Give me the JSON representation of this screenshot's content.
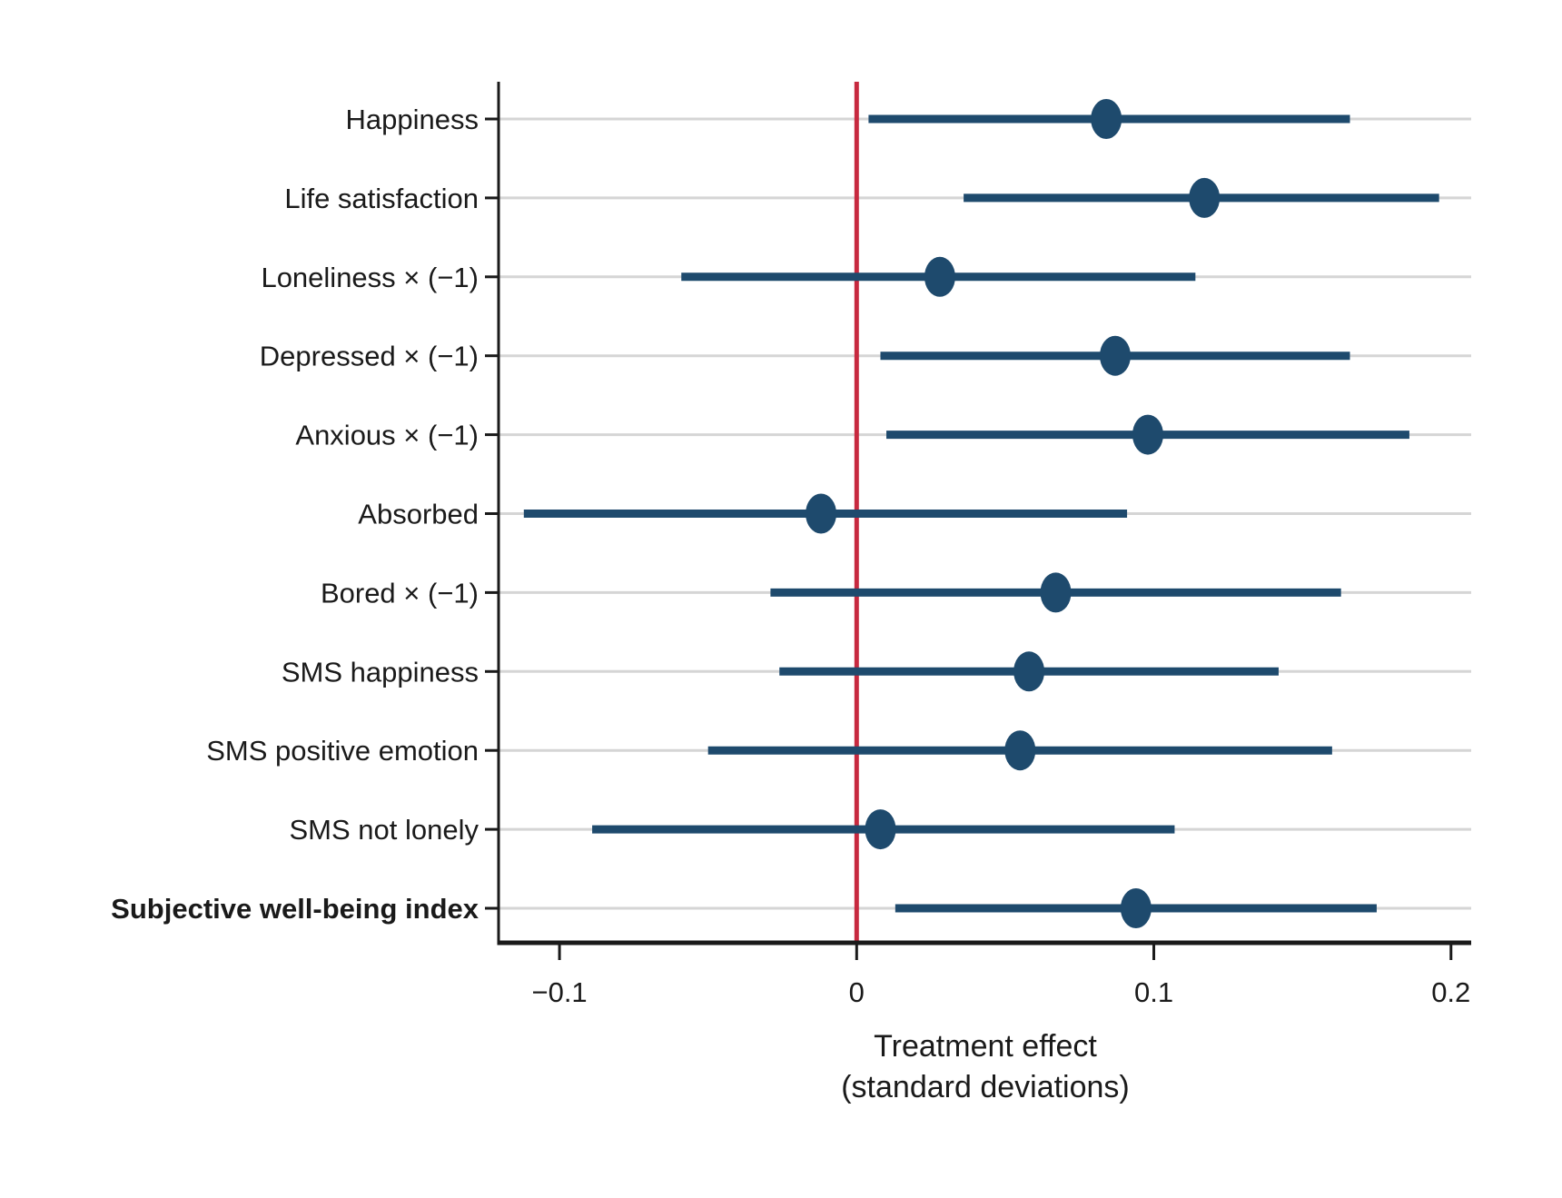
{
  "chart_data": {
    "type": "scatter",
    "subtype": "forest-plot-dot-with-ci",
    "title": "",
    "xlabel_line1": "Treatment effect",
    "xlabel_line2": "(standard deviations)",
    "ylabel": "",
    "xlim": [
      -0.1205,
      0.2068
    ],
    "x_ticks": [
      -0.1,
      0,
      0.1,
      0.2
    ],
    "x_tick_labels": [
      "−0.1",
      "0",
      "0.1",
      "0.2"
    ],
    "reference_line_x": 0,
    "grid": "horizontal",
    "legend": null,
    "rows": [
      {
        "label": "Happiness",
        "bold": false,
        "estimate": 0.084,
        "ci_low": 0.004,
        "ci_high": 0.166
      },
      {
        "label": "Life satisfaction",
        "bold": false,
        "estimate": 0.117,
        "ci_low": 0.036,
        "ci_high": 0.196
      },
      {
        "label": "Loneliness × (−1)",
        "bold": false,
        "estimate": 0.028,
        "ci_low": -0.059,
        "ci_high": 0.114
      },
      {
        "label": "Depressed × (−1)",
        "bold": false,
        "estimate": 0.087,
        "ci_low": 0.008,
        "ci_high": 0.166
      },
      {
        "label": "Anxious × (−1)",
        "bold": false,
        "estimate": 0.098,
        "ci_low": 0.01,
        "ci_high": 0.186
      },
      {
        "label": "Absorbed",
        "bold": false,
        "estimate": -0.012,
        "ci_low": -0.112,
        "ci_high": 0.091
      },
      {
        "label": "Bored × (−1)",
        "bold": false,
        "estimate": 0.067,
        "ci_low": -0.029,
        "ci_high": 0.163
      },
      {
        "label": "SMS happiness",
        "bold": false,
        "estimate": 0.058,
        "ci_low": -0.026,
        "ci_high": 0.142
      },
      {
        "label": "SMS positive emotion",
        "bold": false,
        "estimate": 0.055,
        "ci_low": -0.05,
        "ci_high": 0.16
      },
      {
        "label": "SMS not lonely",
        "bold": false,
        "estimate": 0.008,
        "ci_low": -0.089,
        "ci_high": 0.107
      },
      {
        "label": "Subjective well-being index",
        "bold": true,
        "estimate": 0.094,
        "ci_low": 0.013,
        "ci_high": 0.175
      }
    ],
    "colors": {
      "point": "#1e4a6d",
      "ci_bar": "#1e4a6d",
      "reference_line": "#c7293f",
      "gridline": "#d5d5d5",
      "axis": "#1a1a1a",
      "text": "#1a1a1a"
    }
  }
}
